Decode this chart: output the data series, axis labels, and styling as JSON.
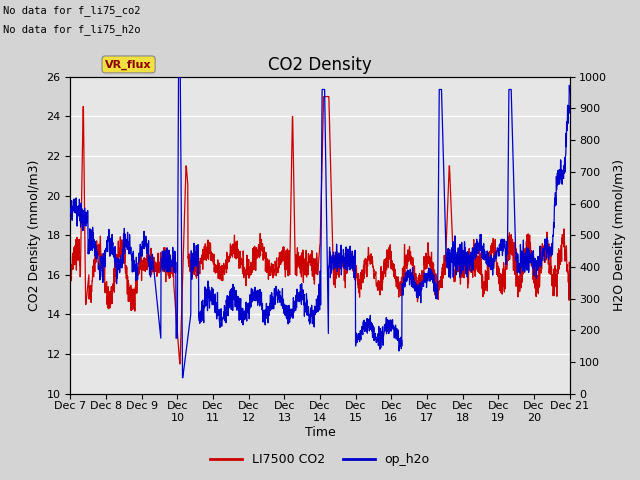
{
  "title": "CO2 Density",
  "xlabel": "Time",
  "ylabel_left": "CO2 Density (mmol/m3)",
  "ylabel_right": "H2O Density (mmol/m3)",
  "left_ylim": [
    10,
    26
  ],
  "right_ylim": [
    0,
    1000
  ],
  "left_yticks": [
    10,
    12,
    14,
    16,
    18,
    20,
    22,
    24,
    26
  ],
  "right_yticks": [
    0,
    100,
    200,
    300,
    400,
    500,
    600,
    700,
    800,
    900,
    1000
  ],
  "xtick_labels": [
    "Dec 7",
    "Dec 8",
    "Dec 9",
    "Dec\n10",
    "Dec\n11",
    "Dec\n12",
    "Dec\n13",
    "Dec\n14",
    "Dec\n15",
    "Dec\n16",
    "Dec\n17",
    "Dec\n18",
    "Dec\n19",
    "Dec\n20",
    "Dec 21"
  ],
  "top_left_text1": "No data for f_li75_co2",
  "top_left_text2": "No data for f_li75_h2o",
  "vr_flux_label": "VR_flux",
  "legend_entries": [
    "LI7500 CO2",
    "op_h2o"
  ],
  "legend_colors": [
    "#cc0000",
    "#0000cc"
  ],
  "bg_color": "#d4d4d4",
  "plot_bg_color": "#e6e6e6",
  "co2_color": "#cc0000",
  "h2o_color": "#0000cc",
  "title_fontsize": 12,
  "label_fontsize": 9,
  "tick_fontsize": 8,
  "n_points": 2000
}
